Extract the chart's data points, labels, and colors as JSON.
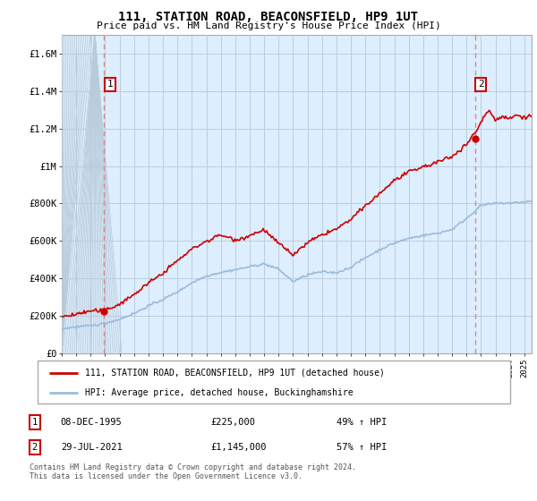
{
  "title": "111, STATION ROAD, BEACONSFIELD, HP9 1UT",
  "subtitle": "Price paid vs. HM Land Registry's House Price Index (HPI)",
  "ylabel_ticks": [
    "£0",
    "£200K",
    "£400K",
    "£600K",
    "£800K",
    "£1M",
    "£1.2M",
    "£1.4M",
    "£1.6M"
  ],
  "ytick_values": [
    0,
    200000,
    400000,
    600000,
    800000,
    1000000,
    1200000,
    1400000,
    1600000
  ],
  "ylim": [
    0,
    1700000
  ],
  "xlim_start": 1993.0,
  "xlim_end": 2025.5,
  "sale1_x": 1995.92,
  "sale1_y": 225000,
  "sale1_label": "1",
  "sale2_x": 2021.57,
  "sale2_y": 1145000,
  "sale2_label": "2",
  "price_line_color": "#cc0000",
  "hpi_line_color": "#99bbdd",
  "vline_color": "#dd8888",
  "plot_bg_color": "#ddeeff",
  "hatch_color": "#c8d8e8",
  "grid_color": "#bbccdd",
  "legend_price_label": "111, STATION ROAD, BEACONSFIELD, HP9 1UT (detached house)",
  "legend_hpi_label": "HPI: Average price, detached house, Buckinghamshire",
  "table_row1": [
    "1",
    "08-DEC-1995",
    "£225,000",
    "49% ↑ HPI"
  ],
  "table_row2": [
    "2",
    "29-JUL-2021",
    "£1,145,000",
    "57% ↑ HPI"
  ],
  "footer": "Contains HM Land Registry data © Crown copyright and database right 2024.\nThis data is licensed under the Open Government Licence v3.0.",
  "xtick_years": [
    1993,
    1994,
    1995,
    1996,
    1997,
    1998,
    1999,
    2000,
    2001,
    2002,
    2003,
    2004,
    2005,
    2006,
    2007,
    2008,
    2009,
    2010,
    2011,
    2012,
    2013,
    2014,
    2015,
    2016,
    2017,
    2018,
    2019,
    2020,
    2021,
    2022,
    2023,
    2024,
    2025
  ]
}
